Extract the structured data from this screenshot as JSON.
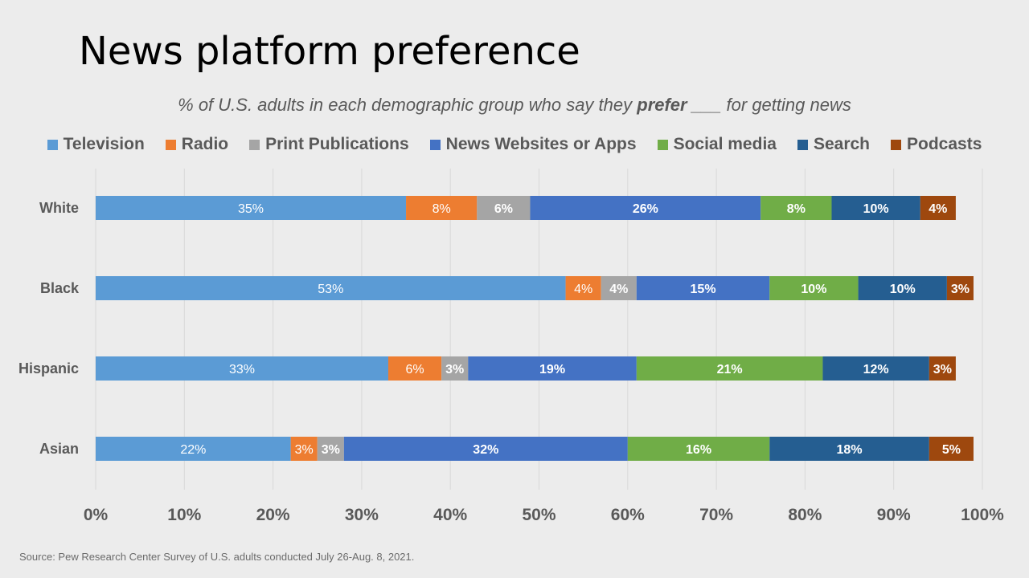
{
  "title": "News platform preference",
  "subtitle": {
    "before": "% of U.S. adults in each demographic group who say they ",
    "emphasis": "prefer",
    "after": " ___  for getting news"
  },
  "source": "Source: Pew Research Center Survey of U.S. adults conducted  July 26-Aug. 8, 2021.",
  "chart_data": {
    "type": "bar",
    "orientation": "horizontal",
    "stacked": true,
    "categories": [
      "White",
      "Black",
      "Hispanic",
      "Asian"
    ],
    "series": [
      {
        "name": "Television",
        "color": "#5b9bd5",
        "values": [
          35,
          53,
          33,
          22
        ]
      },
      {
        "name": "Radio",
        "color": "#ed7d31",
        "values": [
          8,
          4,
          6,
          3
        ]
      },
      {
        "name": "Print Publications",
        "color": "#a5a5a5",
        "values": [
          6,
          4,
          3,
          3
        ]
      },
      {
        "name": "News Websites or Apps",
        "color": "#4472c4",
        "values": [
          26,
          15,
          19,
          32
        ]
      },
      {
        "name": "Social media",
        "color": "#70ad47",
        "values": [
          8,
          10,
          21,
          16
        ]
      },
      {
        "name": "Search",
        "color": "#255e91",
        "values": [
          10,
          10,
          12,
          18
        ]
      },
      {
        "name": "Podcasts",
        "color": "#9e480e",
        "values": [
          4,
          3,
          3,
          5
        ]
      }
    ],
    "xlim": [
      0,
      100
    ],
    "x_ticks": [
      "0%",
      "10%",
      "20%",
      "30%",
      "40%",
      "50%",
      "60%",
      "70%",
      "80%",
      "90%",
      "100%"
    ],
    "grid": true,
    "legend_position": "top"
  }
}
